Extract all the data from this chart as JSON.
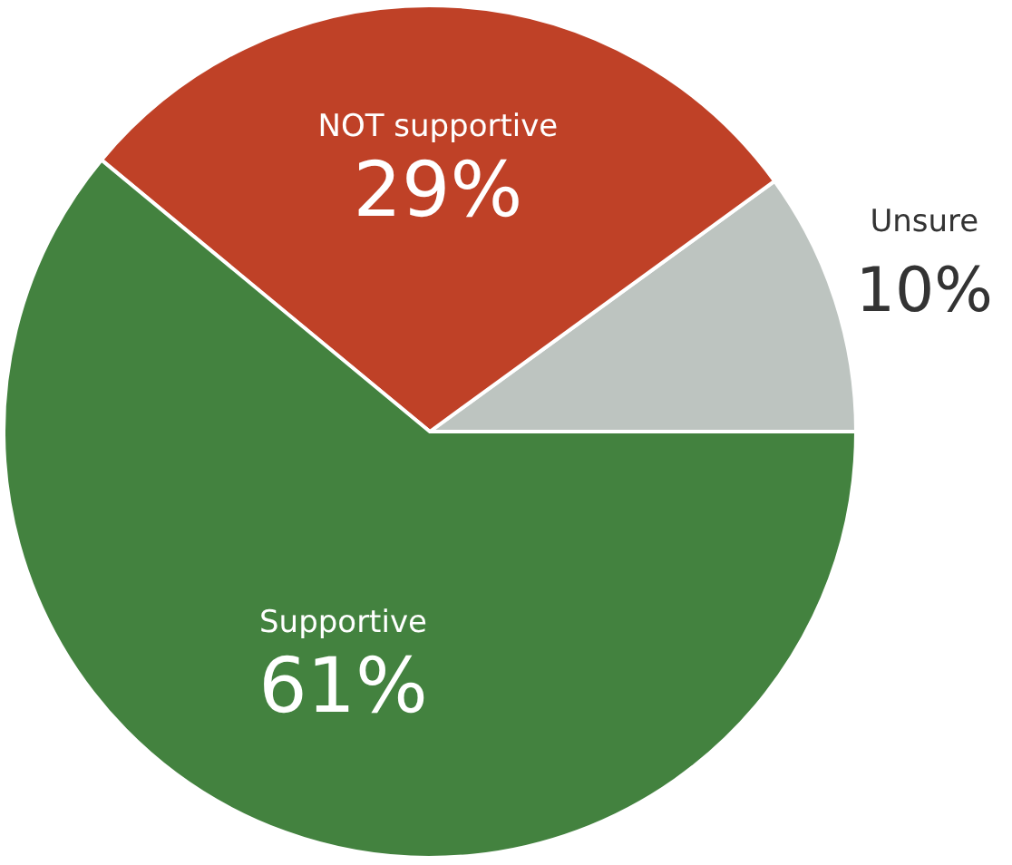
{
  "chart_data": {
    "type": "pie",
    "categories": [
      "Unsure",
      "NOT supportive",
      "Supportive"
    ],
    "values": [
      10,
      29,
      61
    ],
    "value_labels": [
      "10%",
      "29%",
      "61%"
    ],
    "colors": [
      "#bdc4c0",
      "#bf4127",
      "#43823f"
    ]
  }
}
